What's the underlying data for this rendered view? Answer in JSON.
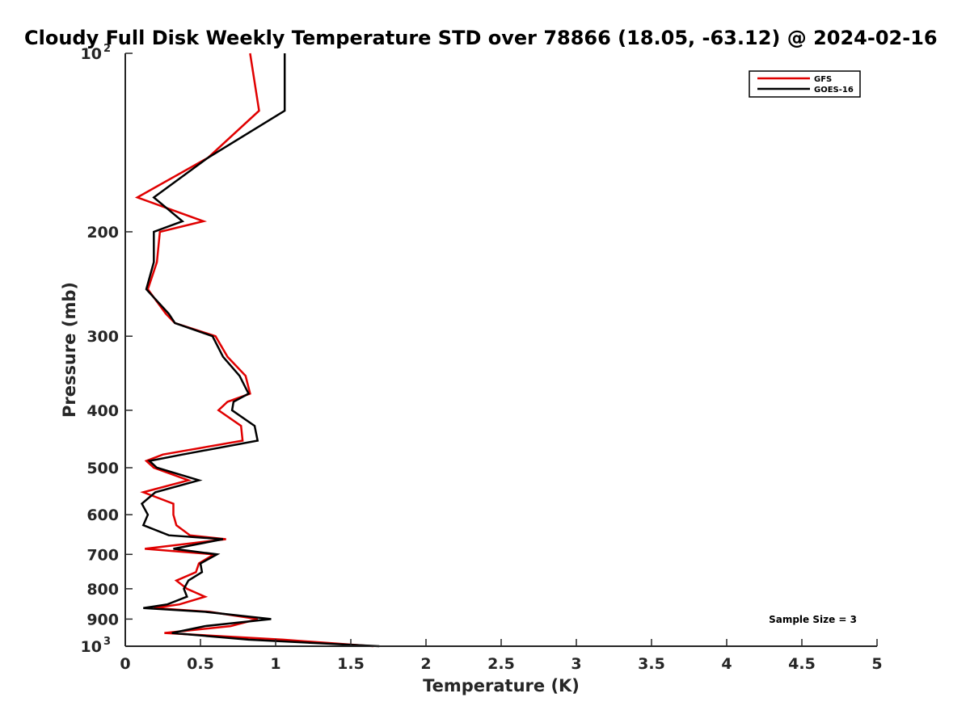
{
  "chart_data": {
    "type": "line",
    "title": "Cloudy Full Disk Weekly Temperature STD over 78866 (18.05, -63.12) @ 2024-02-16",
    "xlabel": "Temperature (K)",
    "ylabel": "Pressure (mb)",
    "xlim": [
      0,
      5
    ],
    "ylim": [
      100,
      1000
    ],
    "y_scale": "log",
    "y_reversed": true,
    "x_ticks": [
      "0",
      "0.5",
      "1",
      "1.5",
      "2",
      "2.5",
      "3",
      "3.5",
      "4",
      "4.5",
      "5"
    ],
    "y_ticks": [
      {
        "value": 100,
        "base": "10",
        "exp": "2"
      },
      {
        "value": 200,
        "label": "200"
      },
      {
        "value": 300,
        "label": "300"
      },
      {
        "value": 400,
        "label": "400"
      },
      {
        "value": 500,
        "label": "500"
      },
      {
        "value": 600,
        "label": "600"
      },
      {
        "value": 700,
        "label": "700"
      },
      {
        "value": 800,
        "label": "800"
      },
      {
        "value": 900,
        "label": "900"
      },
      {
        "value": 1000,
        "base": "10",
        "exp": "3"
      }
    ],
    "grid": false,
    "legend_position": "top-right",
    "series": [
      {
        "name": "GFS",
        "color": "#e00000",
        "points": [
          [
            0.83,
            100
          ],
          [
            0.89,
            125
          ],
          [
            0.55,
            150
          ],
          [
            0.08,
            175
          ],
          [
            0.52,
            192
          ],
          [
            0.23,
            200
          ],
          [
            0.21,
            225
          ],
          [
            0.15,
            250
          ],
          [
            0.27,
            275
          ],
          [
            0.33,
            285
          ],
          [
            0.6,
            300
          ],
          [
            0.68,
            325
          ],
          [
            0.8,
            350
          ],
          [
            0.83,
            375
          ],
          [
            0.68,
            387
          ],
          [
            0.62,
            400
          ],
          [
            0.77,
            425
          ],
          [
            0.78,
            450
          ],
          [
            0.25,
            475
          ],
          [
            0.14,
            487
          ],
          [
            0.19,
            500
          ],
          [
            0.42,
            525
          ],
          [
            0.12,
            550
          ],
          [
            0.32,
            575
          ],
          [
            0.32,
            600
          ],
          [
            0.34,
            625
          ],
          [
            0.43,
            650
          ],
          [
            0.67,
            660
          ],
          [
            0.13,
            685
          ],
          [
            0.59,
            700
          ],
          [
            0.49,
            725
          ],
          [
            0.47,
            750
          ],
          [
            0.34,
            775
          ],
          [
            0.41,
            800
          ],
          [
            0.53,
            825
          ],
          [
            0.36,
            850
          ],
          [
            0.19,
            862
          ],
          [
            0.56,
            875
          ],
          [
            0.88,
            900
          ],
          [
            0.7,
            925
          ],
          [
            0.26,
            950
          ],
          [
            1.05,
            975
          ],
          [
            1.65,
            1000
          ]
        ]
      },
      {
        "name": "GOES-16",
        "color": "#000000",
        "points": [
          [
            1.06,
            100
          ],
          [
            1.06,
            125
          ],
          [
            0.55,
            150
          ],
          [
            0.19,
            175
          ],
          [
            0.38,
            192
          ],
          [
            0.19,
            200
          ],
          [
            0.19,
            225
          ],
          [
            0.14,
            250
          ],
          [
            0.29,
            275
          ],
          [
            0.33,
            285
          ],
          [
            0.58,
            300
          ],
          [
            0.65,
            325
          ],
          [
            0.76,
            350
          ],
          [
            0.82,
            375
          ],
          [
            0.72,
            387
          ],
          [
            0.71,
            400
          ],
          [
            0.86,
            425
          ],
          [
            0.88,
            450
          ],
          [
            0.38,
            475
          ],
          [
            0.16,
            487
          ],
          [
            0.21,
            500
          ],
          [
            0.49,
            525
          ],
          [
            0.2,
            550
          ],
          [
            0.11,
            575
          ],
          [
            0.15,
            600
          ],
          [
            0.12,
            625
          ],
          [
            0.29,
            650
          ],
          [
            0.65,
            660
          ],
          [
            0.32,
            685
          ],
          [
            0.61,
            700
          ],
          [
            0.5,
            725
          ],
          [
            0.51,
            750
          ],
          [
            0.42,
            775
          ],
          [
            0.39,
            800
          ],
          [
            0.41,
            825
          ],
          [
            0.28,
            850
          ],
          [
            0.12,
            862
          ],
          [
            0.53,
            875
          ],
          [
            0.97,
            900
          ],
          [
            0.53,
            925
          ],
          [
            0.31,
            950
          ],
          [
            0.82,
            975
          ],
          [
            1.69,
            1000
          ]
        ]
      }
    ],
    "annotation": "Sample Size = 3"
  }
}
